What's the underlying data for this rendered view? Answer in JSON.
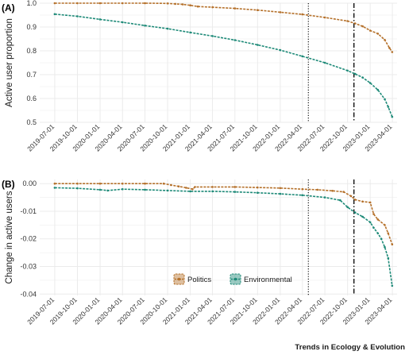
{
  "figure": {
    "credit": "Trends in Ecology & Evolution"
  },
  "colors": {
    "politics": "#b5712b",
    "environmental": "#1e8a78",
    "grid": "#ebebeb",
    "reference_lines": "#000000"
  },
  "chart_data": [
    {
      "panel": "(A)",
      "type": "line",
      "title": "",
      "xlabel": "",
      "ylabel": "Active user proportion",
      "x_tick_labels": [
        "2019-07-01",
        "2019-10-01",
        "2020-01-01",
        "2020-04-01",
        "2020-07-01",
        "2020-10-01",
        "2021-01-01",
        "2021-04-01",
        "2021-07-01",
        "2021-10-01",
        "2022-01-01",
        "2022-04-01",
        "2022-07-01",
        "2022-10-01",
        "2023-01-01",
        "2023-04-01"
      ],
      "xlim": [
        "2019-05-01",
        "2023-04-20"
      ],
      "ylim": [
        0.5,
        1.0
      ],
      "y_ticks": [
        0.5,
        0.6,
        0.7,
        0.8,
        0.9,
        1.0
      ],
      "y_tick_labels": [
        "0.5",
        "0.6",
        "0.7",
        "0.8",
        "0.9",
        "1.0"
      ],
      "grid": true,
      "reference_lines": [
        {
          "x": "2022-04-25",
          "style": "dotted"
        },
        {
          "x": "2022-10-27",
          "style": "dashdot"
        }
      ],
      "series": [
        {
          "name": "Politics",
          "points": [
            [
              "2019-07-01",
              1.0
            ],
            [
              "2019-10-01",
              1.0
            ],
            [
              "2020-01-01",
              1.0
            ],
            [
              "2020-04-01",
              1.0
            ],
            [
              "2020-07-01",
              1.0
            ],
            [
              "2020-10-01",
              0.999
            ],
            [
              "2020-11-01",
              0.997
            ],
            [
              "2020-12-01",
              0.995
            ],
            [
              "2021-01-01",
              0.991
            ],
            [
              "2021-02-01",
              0.986
            ],
            [
              "2021-04-01",
              0.983
            ],
            [
              "2021-07-01",
              0.978
            ],
            [
              "2021-10-01",
              0.971
            ],
            [
              "2022-01-01",
              0.962
            ],
            [
              "2022-04-01",
              0.953
            ],
            [
              "2022-07-01",
              0.94
            ],
            [
              "2022-10-01",
              0.925
            ],
            [
              "2022-11-01",
              0.915
            ],
            [
              "2022-12-01",
              0.903
            ],
            [
              "2023-01-01",
              0.885
            ],
            [
              "2023-02-01",
              0.872
            ],
            [
              "2023-03-01",
              0.846
            ],
            [
              "2023-03-20",
              0.812
            ],
            [
              "2023-03-31",
              0.795
            ]
          ]
        },
        {
          "name": "Environmental",
          "points": [
            [
              "2019-07-01",
              0.954
            ],
            [
              "2019-10-01",
              0.945
            ],
            [
              "2020-01-01",
              0.932
            ],
            [
              "2020-04-01",
              0.92
            ],
            [
              "2020-07-01",
              0.906
            ],
            [
              "2020-10-01",
              0.893
            ],
            [
              "2021-01-01",
              0.877
            ],
            [
              "2021-04-01",
              0.862
            ],
            [
              "2021-07-01",
              0.845
            ],
            [
              "2021-10-01",
              0.825
            ],
            [
              "2022-01-01",
              0.803
            ],
            [
              "2022-04-01",
              0.777
            ],
            [
              "2022-07-01",
              0.75
            ],
            [
              "2022-10-01",
              0.717
            ],
            [
              "2022-11-01",
              0.703
            ],
            [
              "2022-12-01",
              0.688
            ],
            [
              "2023-01-01",
              0.665
            ],
            [
              "2023-02-01",
              0.636
            ],
            [
              "2023-03-01",
              0.597
            ],
            [
              "2023-03-15",
              0.565
            ],
            [
              "2023-03-31",
              0.523
            ]
          ]
        }
      ]
    },
    {
      "panel": "(B)",
      "type": "line",
      "title": "",
      "xlabel": "",
      "ylabel": "Change in active users",
      "x_tick_labels": [
        "2019-07-01",
        "2019-10-01",
        "2020-01-01",
        "2020-04-01",
        "2020-07-01",
        "2020-10-01",
        "2021-01-01",
        "2021-04-01",
        "2021-07-01",
        "2021-10-01",
        "2022-01-01",
        "2022-04-01",
        "2022-07-01",
        "2022-10-01",
        "2023-01-01",
        "2023-04-01"
      ],
      "xlim": [
        "2019-05-01",
        "2023-04-20"
      ],
      "ylim": [
        -0.0405,
        0.0015
      ],
      "y_ticks": [
        0.0,
        -0.01,
        -0.02,
        -0.03,
        -0.04
      ],
      "y_tick_labels": [
        "0.00",
        "-0.01",
        "-0.02",
        "-0.03",
        "-0.04"
      ],
      "grid": true,
      "legend": {
        "placement": "bottom-center",
        "entries": [
          "Politics",
          "Environmental"
        ]
      },
      "reference_lines": [
        {
          "x": "2022-04-25",
          "style": "dotted"
        },
        {
          "x": "2022-10-27",
          "style": "dashdot"
        }
      ],
      "series": [
        {
          "name": "Politics",
          "points": [
            [
              "2019-07-01",
              0.0
            ],
            [
              "2019-10-01",
              0.0
            ],
            [
              "2020-01-01",
              0.0
            ],
            [
              "2020-04-01",
              0.0
            ],
            [
              "2020-07-01",
              0.0
            ],
            [
              "2020-09-15",
              0.0
            ],
            [
              "2020-10-15",
              -0.0005
            ],
            [
              "2020-11-15",
              -0.001
            ],
            [
              "2020-12-15",
              -0.0015
            ],
            [
              "2021-01-10",
              -0.002
            ],
            [
              "2021-01-20",
              -0.0012
            ],
            [
              "2021-04-01",
              -0.0012
            ],
            [
              "2021-07-01",
              -0.0012
            ],
            [
              "2021-10-01",
              -0.0014
            ],
            [
              "2022-01-01",
              -0.0016
            ],
            [
              "2022-04-01",
              -0.002
            ],
            [
              "2022-06-01",
              -0.0022
            ],
            [
              "2022-08-01",
              -0.0026
            ],
            [
              "2022-09-15",
              -0.003
            ],
            [
              "2022-10-15",
              -0.0045
            ],
            [
              "2022-11-01",
              -0.0058
            ],
            [
              "2022-12-01",
              -0.0065
            ],
            [
              "2023-01-01",
              -0.0068
            ],
            [
              "2023-01-15",
              -0.011
            ],
            [
              "2023-02-01",
              -0.013
            ],
            [
              "2023-03-01",
              -0.015
            ],
            [
              "2023-03-15",
              -0.018
            ],
            [
              "2023-03-31",
              -0.022
            ]
          ]
        },
        {
          "name": "Environmental",
          "points": [
            [
              "2019-07-01",
              -0.0015
            ],
            [
              "2019-10-01",
              -0.0017
            ],
            [
              "2020-01-01",
              -0.0022
            ],
            [
              "2020-02-01",
              -0.0025
            ],
            [
              "2020-04-01",
              -0.002
            ],
            [
              "2020-07-01",
              -0.0022
            ],
            [
              "2020-10-01",
              -0.0025
            ],
            [
              "2021-01-01",
              -0.0028
            ],
            [
              "2021-04-01",
              -0.0028
            ],
            [
              "2021-07-01",
              -0.003
            ],
            [
              "2021-10-01",
              -0.0033
            ],
            [
              "2022-01-01",
              -0.0037
            ],
            [
              "2022-04-01",
              -0.0042
            ],
            [
              "2022-07-01",
              -0.005
            ],
            [
              "2022-09-01",
              -0.006
            ],
            [
              "2022-10-01",
              -0.0085
            ],
            [
              "2022-11-01",
              -0.0105
            ],
            [
              "2022-12-01",
              -0.012
            ],
            [
              "2023-01-01",
              -0.014
            ],
            [
              "2023-01-15",
              -0.016
            ],
            [
              "2023-02-01",
              -0.018
            ],
            [
              "2023-02-15",
              -0.02
            ],
            [
              "2023-03-01",
              -0.023
            ],
            [
              "2023-03-15",
              -0.027
            ],
            [
              "2023-03-31",
              -0.037
            ]
          ]
        }
      ]
    }
  ]
}
